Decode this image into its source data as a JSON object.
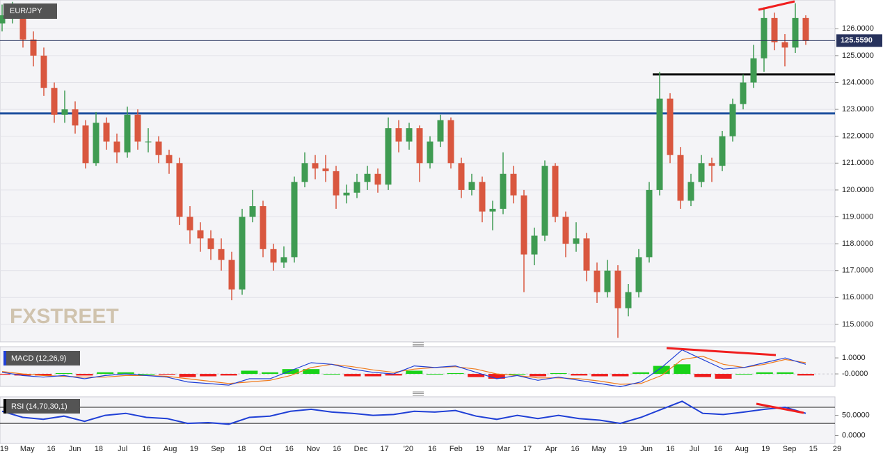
{
  "chart_data": [
    {
      "type": "candlestick",
      "title": "EUR/JPY",
      "watermark": "FXSTREET",
      "up_color": "#3f9b52",
      "down_color": "#d9573f",
      "candles": [
        [
          126.2,
          126.9,
          125.9,
          126.5
        ],
        [
          126.5,
          127.0,
          126.2,
          126.7
        ],
        [
          126.7,
          126.9,
          125.3,
          125.6
        ],
        [
          125.6,
          125.9,
          124.6,
          125.0
        ],
        [
          125.0,
          125.3,
          123.5,
          123.8
        ],
        [
          123.8,
          124.0,
          122.5,
          122.8
        ],
        [
          122.8,
          123.7,
          122.5,
          123.0
        ],
        [
          123.0,
          123.3,
          122.1,
          122.4
        ],
        [
          122.4,
          122.6,
          120.8,
          121.0
        ],
        [
          121.0,
          122.9,
          120.9,
          122.5
        ],
        [
          122.5,
          122.7,
          121.5,
          121.8
        ],
        [
          121.8,
          122.1,
          121.0,
          121.4
        ],
        [
          121.4,
          123.1,
          121.2,
          122.8
        ],
        [
          122.8,
          123.0,
          121.5,
          121.8
        ],
        [
          121.8,
          122.3,
          121.4,
          121.8
        ],
        [
          121.8,
          122.0,
          121.0,
          121.3
        ],
        [
          121.3,
          121.5,
          120.6,
          121.0
        ],
        [
          121.0,
          121.2,
          118.7,
          119.0
        ],
        [
          119.0,
          119.4,
          118.0,
          118.5
        ],
        [
          118.5,
          118.8,
          117.7,
          118.2
        ],
        [
          118.2,
          118.5,
          117.4,
          117.8
        ],
        [
          117.8,
          118.2,
          117.0,
          117.4
        ],
        [
          117.4,
          117.7,
          115.9,
          116.3
        ],
        [
          116.3,
          119.3,
          116.1,
          119.0
        ],
        [
          119.0,
          120.0,
          118.8,
          119.4
        ],
        [
          119.4,
          119.6,
          117.5,
          117.8
        ],
        [
          117.8,
          118.0,
          117.0,
          117.3
        ],
        [
          117.3,
          117.9,
          117.1,
          117.5
        ],
        [
          117.5,
          120.5,
          117.3,
          120.3
        ],
        [
          120.3,
          121.4,
          120.1,
          121.0
        ],
        [
          121.0,
          121.3,
          120.4,
          120.8
        ],
        [
          120.8,
          121.3,
          120.3,
          120.7
        ],
        [
          120.7,
          120.9,
          119.3,
          119.8
        ],
        [
          119.8,
          120.2,
          119.5,
          119.9
        ],
        [
          119.9,
          120.6,
          119.7,
          120.3
        ],
        [
          120.3,
          120.9,
          120.0,
          120.6
        ],
        [
          120.6,
          120.8,
          119.9,
          120.2
        ],
        [
          120.2,
          122.7,
          120.0,
          122.3
        ],
        [
          122.3,
          122.6,
          121.4,
          121.8
        ],
        [
          121.8,
          122.5,
          121.5,
          122.3
        ],
        [
          122.3,
          122.4,
          120.3,
          121.0
        ],
        [
          121.0,
          122.0,
          120.8,
          121.8
        ],
        [
          121.8,
          122.8,
          121.6,
          122.6
        ],
        [
          122.6,
          122.7,
          120.8,
          121.0
        ],
        [
          121.0,
          121.2,
          119.7,
          120.0
        ],
        [
          120.0,
          120.6,
          119.8,
          120.3
        ],
        [
          120.3,
          120.5,
          118.8,
          119.2
        ],
        [
          119.2,
          119.6,
          118.5,
          119.3
        ],
        [
          119.3,
          121.4,
          119.1,
          120.6
        ],
        [
          120.6,
          120.9,
          119.5,
          119.8
        ],
        [
          119.8,
          120.0,
          116.2,
          117.6
        ],
        [
          117.6,
          118.6,
          117.2,
          118.3
        ],
        [
          118.3,
          121.1,
          118.1,
          120.9
        ],
        [
          120.9,
          121.0,
          118.8,
          119.0
        ],
        [
          119.0,
          119.2,
          117.5,
          118.0
        ],
        [
          118.0,
          118.8,
          117.7,
          118.2
        ],
        [
          118.2,
          118.4,
          116.6,
          117.0
        ],
        [
          117.0,
          117.3,
          115.8,
          116.2
        ],
        [
          116.2,
          117.4,
          116.0,
          117.0
        ],
        [
          117.0,
          117.2,
          114.5,
          115.6
        ],
        [
          115.6,
          116.5,
          115.3,
          116.2
        ],
        [
          116.2,
          117.8,
          116.0,
          117.5
        ],
        [
          117.5,
          120.3,
          117.3,
          120.0
        ],
        [
          120.0,
          124.4,
          119.8,
          123.4
        ],
        [
          123.4,
          123.6,
          121.0,
          121.3
        ],
        [
          121.3,
          121.6,
          119.3,
          119.6
        ],
        [
          119.6,
          120.6,
          119.4,
          120.3
        ],
        [
          120.3,
          121.3,
          120.1,
          121.0
        ],
        [
          121.0,
          121.2,
          120.3,
          120.9
        ],
        [
          120.9,
          122.2,
          120.7,
          122.0
        ],
        [
          122.0,
          123.4,
          121.8,
          123.2
        ],
        [
          123.2,
          124.3,
          123.0,
          124.0
        ],
        [
          124.0,
          125.4,
          123.8,
          124.9
        ],
        [
          124.9,
          126.8,
          124.4,
          126.4
        ],
        [
          126.4,
          126.6,
          125.2,
          125.5
        ],
        [
          125.5,
          125.8,
          124.6,
          125.3
        ],
        [
          125.3,
          126.95,
          125.1,
          126.4
        ],
        [
          126.4,
          126.5,
          125.4,
          125.559
        ]
      ],
      "ylim": [
        114.35,
        127.07
      ],
      "yticks": [
        {
          "value": 115,
          "label": "115.0000"
        },
        {
          "value": 116,
          "label": "116.0000"
        },
        {
          "value": 117,
          "label": "117.0000"
        },
        {
          "value": 118,
          "label": "118.0000"
        },
        {
          "value": 119,
          "label": "119.0000"
        },
        {
          "value": 120,
          "label": "120.0000"
        },
        {
          "value": 121,
          "label": "121.0000"
        },
        {
          "value": 122,
          "label": "122.0000"
        },
        {
          "value": 123,
          "label": "123.0000"
        },
        {
          "value": 124,
          "label": "124.0000"
        },
        {
          "value": 125,
          "label": "125.0000"
        },
        {
          "value": 126,
          "label": "126.0000"
        }
      ],
      "last_price": {
        "value": 125.559,
        "label": "125.5590"
      },
      "levels": [
        {
          "value": 122.85,
          "color": "#1d4f9e"
        },
        {
          "value": 124.3,
          "color": "#000000"
        }
      ],
      "categories": [
        "'19",
        "May",
        "16",
        "Jun",
        "18",
        "Jul",
        "16",
        "Aug",
        "19",
        "Sep",
        "18",
        "Oct",
        "16",
        "Nov",
        "16",
        "Dec",
        "17",
        "'20",
        "16",
        "Feb",
        "19",
        "Mar",
        "17",
        "Apr",
        "16",
        "May",
        "19",
        "Jun",
        "16",
        "Jul",
        "16",
        "Aug",
        "19",
        "Sep",
        "15",
        "29"
      ]
    },
    {
      "type": "macd",
      "title": "MACD (12,26,9)",
      "macd": {
        "color": "#1f3fd6",
        "values": [
          0.1,
          -0.1,
          -0.2,
          -0.1,
          -0.3,
          -0.1,
          0.0,
          -0.1,
          -0.2,
          -0.5,
          -0.6,
          -0.7,
          -0.3,
          -0.3,
          0.2,
          0.7,
          0.6,
          0.3,
          0.1,
          0.0,
          0.5,
          0.4,
          0.5,
          0.1,
          -0.3,
          -0.1,
          -0.4,
          -0.2,
          -0.4,
          -0.6,
          -0.8,
          -0.5,
          0.4,
          1.5,
          0.9,
          0.3,
          0.4,
          0.7,
          1.0,
          0.6
        ]
      },
      "signal": {
        "color": "#f07a1a",
        "values": [
          0.15,
          0.0,
          -0.1,
          -0.15,
          -0.2,
          -0.2,
          -0.1,
          -0.1,
          -0.15,
          -0.3,
          -0.45,
          -0.6,
          -0.5,
          -0.4,
          -0.1,
          0.4,
          0.6,
          0.45,
          0.25,
          0.1,
          0.3,
          0.4,
          0.45,
          0.3,
          0.0,
          -0.1,
          -0.25,
          -0.25,
          -0.3,
          -0.45,
          -0.65,
          -0.6,
          -0.1,
          0.9,
          1.1,
          0.6,
          0.4,
          0.6,
          0.9,
          0.7
        ]
      },
      "histogram": {
        "up_color": "#19d219",
        "down_color": "#ee1c1c",
        "values": [
          -0.05,
          -0.1,
          -0.1,
          0.05,
          -0.1,
          0.1,
          0.1,
          0.0,
          -0.05,
          -0.2,
          -0.15,
          -0.1,
          0.2,
          0.1,
          0.3,
          0.3,
          0.0,
          -0.15,
          -0.15,
          -0.1,
          0.2,
          0.0,
          0.05,
          -0.2,
          -0.3,
          0.0,
          -0.15,
          0.05,
          -0.1,
          -0.15,
          -0.15,
          0.1,
          0.5,
          0.6,
          -0.2,
          -0.3,
          0.0,
          0.1,
          0.1,
          -0.1
        ]
      },
      "ylim": [
        -0.78,
        1.7
      ],
      "yticks": [
        {
          "value": 1,
          "label": "1.0000"
        },
        {
          "value": 0,
          "label": "-0.0000"
        }
      ]
    },
    {
      "type": "rsi",
      "title": "RSI (14,70,30,1)",
      "color": "#1f3fd6",
      "values": [
        60,
        45,
        40,
        48,
        35,
        50,
        55,
        45,
        42,
        30,
        32,
        28,
        45,
        48,
        60,
        65,
        58,
        55,
        50,
        52,
        60,
        58,
        62,
        48,
        40,
        50,
        42,
        50,
        42,
        38,
        30,
        45,
        65,
        85,
        55,
        52,
        58,
        65,
        70,
        55
      ],
      "levels": [
        70,
        30
      ],
      "ylim": [
        -20,
        96
      ],
      "yticks": [
        {
          "value": 50,
          "label": "50.0000"
        },
        {
          "value": 0,
          "label": "0.0000"
        }
      ]
    }
  ]
}
